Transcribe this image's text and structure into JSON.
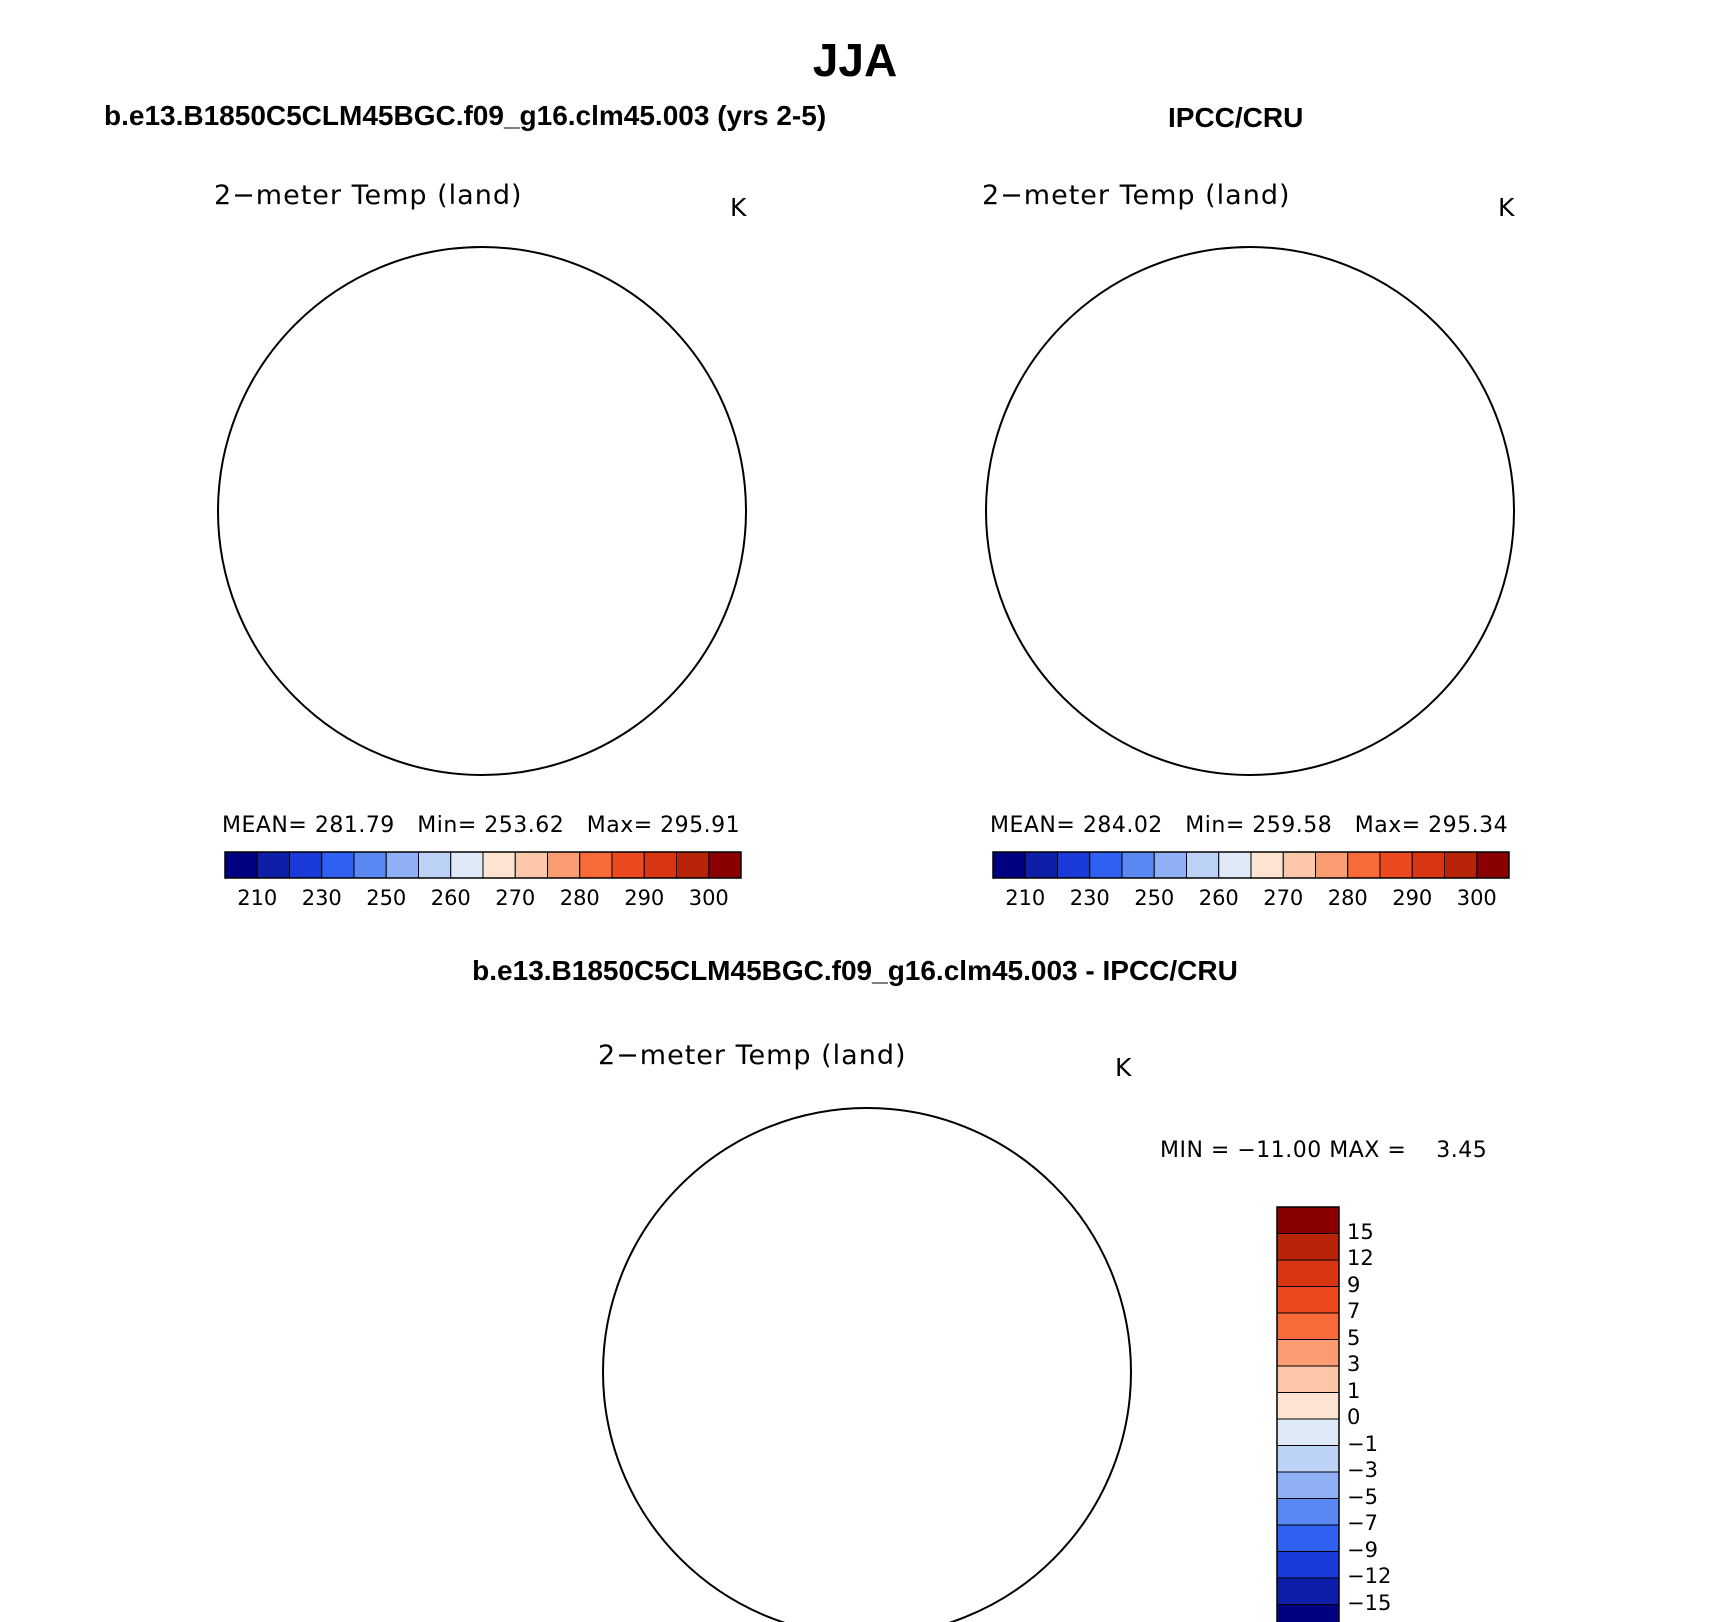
{
  "title": "JJA",
  "panels": [
    {
      "heading": "b.e13.B1850C5CLM45BGC.f09_g16.clm45.003 (yrs 2-5)",
      "variable": "2−meter Temp (land)",
      "units": "K",
      "stats": {
        "mean_label": "MEAN=",
        "mean": "281.79",
        "min_label": "Min=",
        "min": "253.62",
        "max_label": "Max=",
        "max": "295.91"
      }
    },
    {
      "heading": "IPCC/CRU",
      "variable": "2−meter Temp (land)",
      "units": "K",
      "stats": {
        "mean_label": "MEAN=",
        "mean": "284.02",
        "min_label": "Min=",
        "min": "259.58",
        "max_label": "Max=",
        "max": "295.34"
      }
    }
  ],
  "absolute_colorbar": {
    "tick_labels": [
      "210",
      "230",
      "250",
      "260",
      "270",
      "280",
      "290",
      "300"
    ],
    "colors": [
      "#000080",
      "#0d1fa8",
      "#1a3ad8",
      "#3060f2",
      "#5a88f2",
      "#8fb0f5",
      "#bcd2f7",
      "#dfeaf9",
      "#fde4d2",
      "#fcc6a8",
      "#fb9b72",
      "#f86a3a",
      "#ec4a1e",
      "#d83512",
      "#b82407",
      "#8a0000"
    ]
  },
  "difference_panel": {
    "heading": "b.e13.B1850C5CLM45BGC.f09_g16.clm45.003 - IPCC/CRU",
    "variable": "2−meter Temp (land)",
    "units": "K",
    "range_text": "MIN = −11.00 MAX =    3.45",
    "colorbar": {
      "tick_labels": [
        "15",
        "12",
        "9",
        "7",
        "5",
        "3",
        "1",
        "0",
        "−1",
        "−3",
        "−5",
        "−7",
        "−9",
        "−12",
        "−15"
      ],
      "colors": [
        "#8a0000",
        "#b82407",
        "#d83512",
        "#ec4a1e",
        "#f86a3a",
        "#fb9b72",
        "#fcc6a8",
        "#fde4d2",
        "#dfeaf9",
        "#bcd2f7",
        "#8fb0f5",
        "#5a88f2",
        "#3060f2",
        "#1a3ad8",
        "#0d1fa8",
        "#000080"
      ]
    }
  },
  "palette": {
    "warm_main": "#f26035",
    "warm_dark": "#df3a12",
    "warm_light": "#f9a27c",
    "pale_warm": "#fcd9c4",
    "ice_blue": "#bcd2f7",
    "ice_pale": "#dbe7fa",
    "diff_main": "#a9c3f3",
    "diff_light": "#cfdef8",
    "diff_dark": "#3a6cf0",
    "diff_deep": "#1e4fe0",
    "coast": "#000000"
  }
}
